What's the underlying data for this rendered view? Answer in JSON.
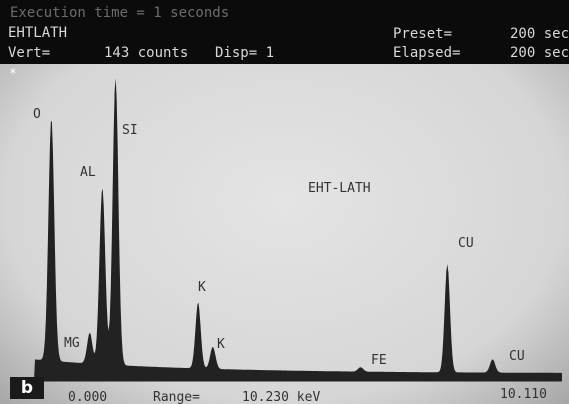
{
  "header": {
    "execution_time": "Execution time =    1 seconds",
    "sample_name": "EHTLATH",
    "vert_label": "Vert=",
    "vert_value": "143 counts",
    "disp": "Disp= 1",
    "preset_label": "Preset=",
    "preset_value": "200 sec",
    "elapsed_label": "Elapsed=",
    "elapsed_value": "200 sec",
    "cursor_mark": "*"
  },
  "footer": {
    "start_energy": "0.000",
    "range_label": "Range=",
    "range_value": "10.230 keV",
    "end_energy": "10.110"
  },
  "panel_label": "b",
  "chart_data": {
    "type": "area",
    "title": "",
    "inline_label": "EHT-LATH",
    "xlabel": "",
    "ylabel": "",
    "x_unit": "keV",
    "xlim": [
      0,
      10.23
    ],
    "ylim": [
      0,
      143
    ],
    "grid": false,
    "legend": "none",
    "colors": {
      "screen": "#dcdcdc",
      "spectrum": "#222222",
      "text": "#333333",
      "header_bg": "#0b0b0b",
      "header_text": "#d8d8d8"
    },
    "series": [
      {
        "peaks": [
          {
            "element": "O",
            "energy": 0.52,
            "counts": 110
          },
          {
            "element": "MG",
            "energy": 1.25,
            "counts": 14
          },
          {
            "element": "AL",
            "energy": 1.49,
            "counts": 80
          },
          {
            "element": "SI",
            "energy": 1.74,
            "counts": 130
          },
          {
            "element": "K",
            "energy": 3.31,
            "counts": 30
          },
          {
            "element": "K",
            "energy": 3.59,
            "counts": 10
          },
          {
            "element": "FE",
            "energy": 6.4,
            "counts": 2
          },
          {
            "element": "CU",
            "energy": 8.05,
            "counts": 49
          },
          {
            "element": "CU",
            "energy": 8.91,
            "counts": 6
          }
        ]
      }
    ],
    "peak_labels": [
      "O",
      "AL",
      "SI",
      "MG",
      "K",
      "K",
      "FE",
      "CU",
      "CU"
    ]
  }
}
